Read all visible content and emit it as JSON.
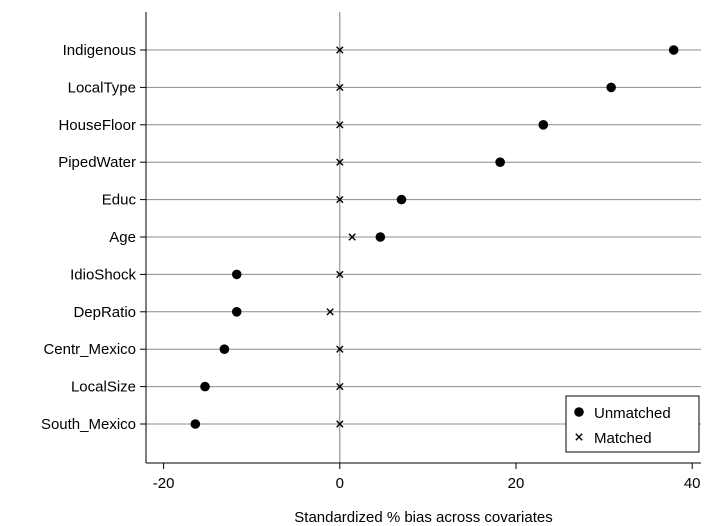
{
  "chart_data": {
    "type": "scatter",
    "title": "",
    "xlabel": "Standardized % bias across covariates",
    "ylabel": "",
    "xlim": [
      -22,
      41
    ],
    "xticks": [
      -20,
      0,
      20,
      40
    ],
    "xtick_labels": [
      "-20",
      "0",
      "20",
      "40"
    ],
    "grid": "horizontal",
    "reference_line": 0,
    "legend_position": "bottom-right",
    "categories": [
      "Indigenous",
      "LocalType",
      "HouseFloor",
      "PipedWater",
      "Educ",
      "Age",
      "IdioShock",
      "DepRatio",
      "Centr_Mexico",
      "LocalSize",
      "South_Mexico"
    ],
    "series": [
      {
        "name": "Unmatched",
        "marker": "filled-circle",
        "color": "#000000",
        "values": [
          37.9,
          30.8,
          23.1,
          18.2,
          7.0,
          4.6,
          -11.7,
          -11.7,
          -13.1,
          -15.3,
          -16.4
        ]
      },
      {
        "name": "Matched",
        "marker": "x",
        "color": "#000000",
        "values": [
          0.0,
          0.0,
          0.0,
          0.0,
          0.0,
          1.4,
          0.0,
          -1.1,
          0.0,
          0.0,
          0.0
        ]
      }
    ]
  }
}
